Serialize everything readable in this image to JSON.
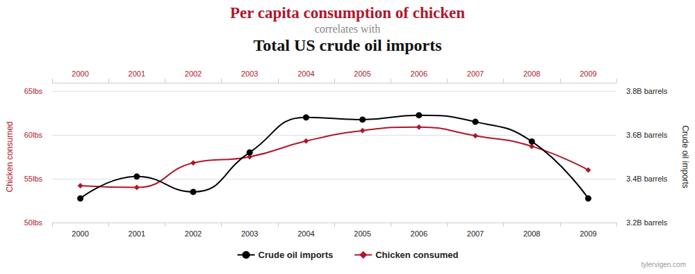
{
  "chart_data": {
    "type": "line",
    "title": "Per capita consumption of chicken",
    "subtitle": "correlates with",
    "second_title": "Total US crude oil imports",
    "source": "tylervigen.com",
    "categories": [
      "2000",
      "2001",
      "2002",
      "2003",
      "2004",
      "2005",
      "2006",
      "2007",
      "2008",
      "2009"
    ],
    "ylabel": "Chicken consumed",
    "y2label": "Crude oil imports",
    "ylim": [
      50,
      65
    ],
    "yticks": [
      {
        "value": 50,
        "label": "50lbs"
      },
      {
        "value": 55,
        "label": "55lbs"
      },
      {
        "value": 60,
        "label": "60lbs"
      },
      {
        "value": 65,
        "label": "65lbs"
      }
    ],
    "y2lim": [
      3.2,
      3.8
    ],
    "y2ticks": [
      {
        "value": 3.2,
        "label": "3.2B barrels"
      },
      {
        "value": 3.4,
        "label": "3.4B barrels"
      },
      {
        "value": 3.6,
        "label": "3.6B barrels"
      },
      {
        "value": 3.8,
        "label": "3.8B barrels"
      }
    ],
    "grid": true,
    "legend": "bottom",
    "series": [
      {
        "name": "Crude oil imports",
        "color": "#000000",
        "marker": "circle",
        "line_style": "solid",
        "axis": "y2",
        "values": [
          3.31,
          3.41,
          3.34,
          3.52,
          3.68,
          3.67,
          3.69,
          3.66,
          3.57,
          3.31
        ]
      },
      {
        "name": "Chicken consumed",
        "color": "#b0172b",
        "marker": "diamond",
        "line_style": "solid",
        "axis": "y",
        "values": [
          54.2,
          54.0,
          56.8,
          57.5,
          59.3,
          60.5,
          60.9,
          59.9,
          58.7,
          56.0
        ]
      }
    ]
  }
}
